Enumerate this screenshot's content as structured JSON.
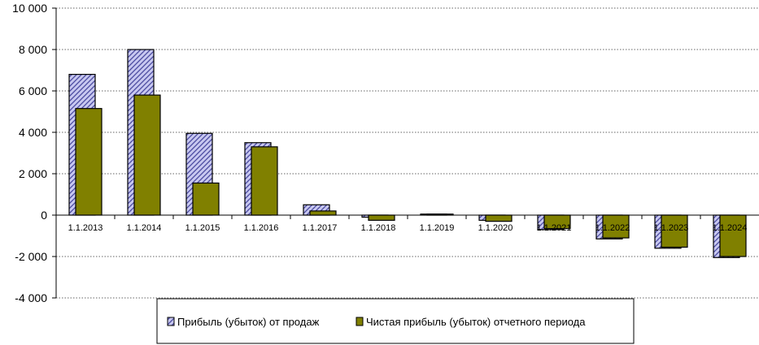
{
  "chart_data": {
    "type": "bar",
    "title": "",
    "xlabel": "",
    "ylabel": "",
    "categories": [
      "1.1.2013",
      "1.1.2014",
      "1.1.2015",
      "1.1.2016",
      "1.1.2017",
      "1.1.2018",
      "1.1.2019",
      "1.1.2020",
      "1.1.2021",
      "1.1.2022",
      "1.1.2023",
      "1.1.2024"
    ],
    "ylim": [
      -4000,
      10000
    ],
    "yticks": [
      10000,
      8000,
      6000,
      4000,
      2000,
      0,
      -2000,
      -4000
    ],
    "ytick_labels": [
      "10 000",
      "8 000",
      "6 000",
      "4 000",
      "2 000",
      "0",
      "-2 000",
      "-4 000"
    ],
    "grid": true,
    "legend_position": "bottom",
    "series": [
      {
        "name": "Прибыль (убыток) от продаж",
        "values": [
          6800,
          8000,
          3950,
          3500,
          500,
          -100,
          50,
          -250,
          -700,
          -1150,
          -1600,
          -2050
        ],
        "color": "#c8c8f0",
        "pattern": "diagonal-hatch"
      },
      {
        "name": "Чистая прибыль (убыток) отчетного периода",
        "values": [
          5150,
          5800,
          1550,
          3300,
          200,
          -250,
          50,
          -300,
          -650,
          -1100,
          -1550,
          -2000
        ],
        "color": "#808000"
      }
    ]
  }
}
